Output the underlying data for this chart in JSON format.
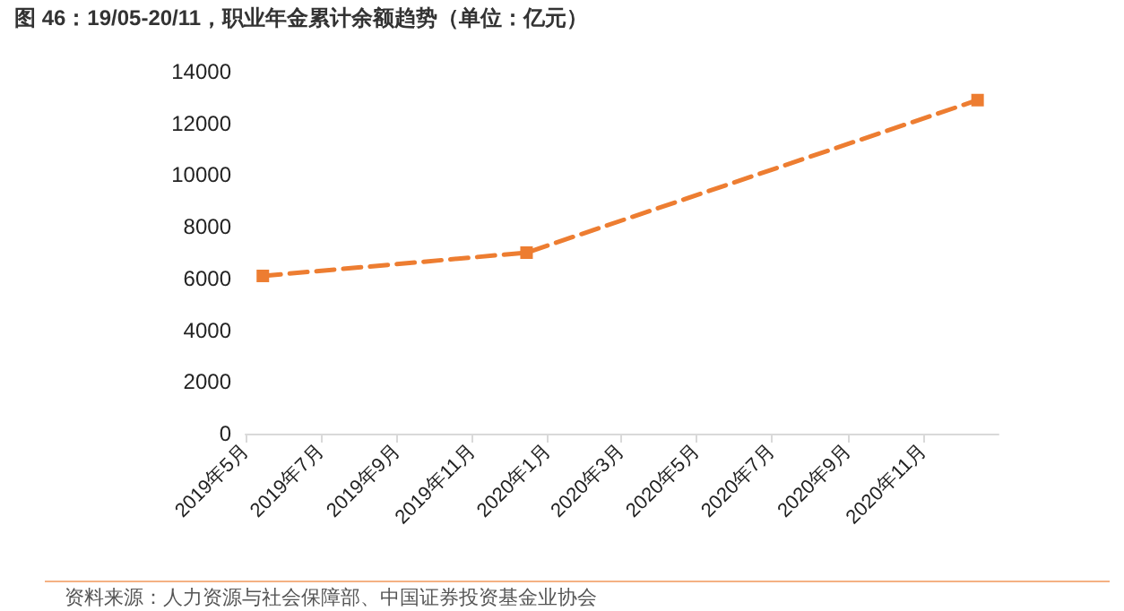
{
  "chart_data": {
    "type": "line",
    "title": "图 46：19/05-20/11，职业年金累计余额趋势（单位：亿元）",
    "x": [
      "2019-05-15",
      "2019-12-15",
      "2020-12-15"
    ],
    "series": [
      {
        "color": "#ed7d31",
        "values": [
          6100,
          7000,
          12900
        ]
      }
    ],
    "xlim": [
      "2019-05-01",
      "2021-01-01"
    ],
    "xticks": [
      {
        "value": "2019-05-01",
        "label": "2019年5月"
      },
      {
        "value": "2019-07-01",
        "label": "2019年7月"
      },
      {
        "value": "2019-09-01",
        "label": "2019年9月"
      },
      {
        "value": "2019-11-01",
        "label": "2019年11月"
      },
      {
        "value": "2020-01-01",
        "label": "2020年1月"
      },
      {
        "value": "2020-03-01",
        "label": "2020年3月"
      },
      {
        "value": "2020-05-01",
        "label": "2020年5月"
      },
      {
        "value": "2020-07-01",
        "label": "2020年7月"
      },
      {
        "value": "2020-09-01",
        "label": "2020年9月"
      },
      {
        "value": "2020-11-01",
        "label": "2020年11月"
      }
    ],
    "ylim": [
      0,
      14000
    ],
    "yticks": [
      0,
      2000,
      4000,
      6000,
      8000,
      10000,
      12000,
      14000
    ],
    "grid": false,
    "marker": "square",
    "line_style": "dashed",
    "annotations": [
      "资料来源：人力资源与社会保障部、中国证券投资基金业协会"
    ]
  }
}
